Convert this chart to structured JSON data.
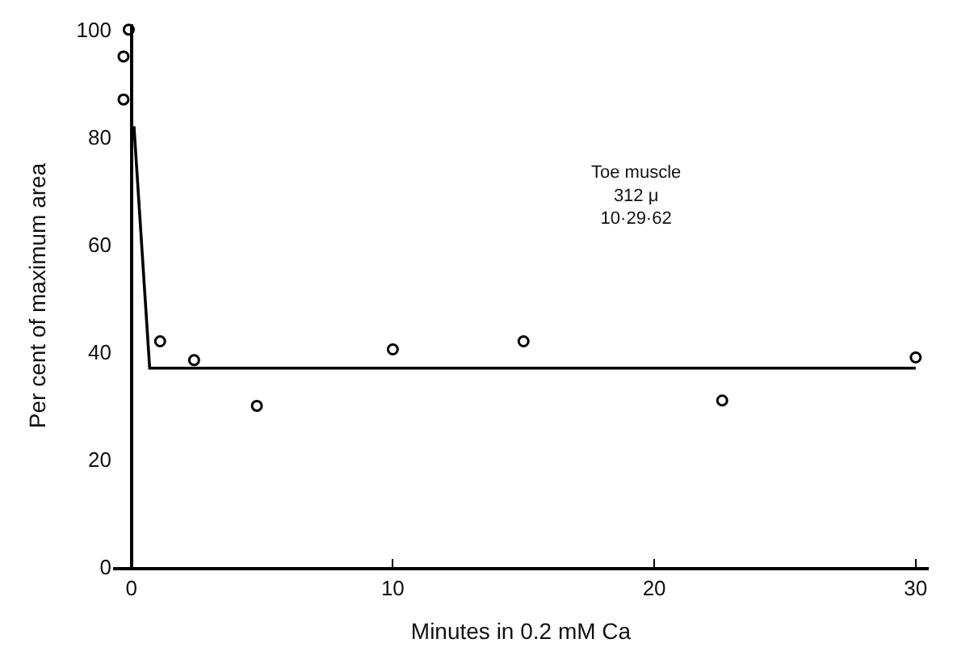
{
  "chart_data": {
    "type": "scatter",
    "xlabel": "Minutes in 0.2 mM Ca",
    "ylabel": "Per cent of maximum area",
    "xlim": [
      -0.7,
      30.5
    ],
    "ylim": [
      0,
      101
    ],
    "xticks": [
      0,
      10,
      20,
      30
    ],
    "yticks": [
      0,
      20,
      40,
      60,
      80,
      100
    ],
    "series": [
      {
        "color": "#000000",
        "marker": "circle",
        "x": [
          -0.1,
          -0.3,
          -0.3,
          1.1,
          2.4,
          4.8,
          10.0,
          15.0,
          22.6,
          30.0
        ],
        "values": [
          100,
          95,
          87,
          42,
          38.5,
          30,
          40.5,
          42,
          31,
          39
        ]
      },
      {
        "type": "line",
        "color": "#000000",
        "marker": "none",
        "line_style": "solid",
        "x": [
          0.1,
          0.7,
          30
        ],
        "values": [
          82,
          37,
          37
        ]
      }
    ],
    "annotations": [
      "Toe muscle\n312 μ\n10·29·62"
    ]
  }
}
